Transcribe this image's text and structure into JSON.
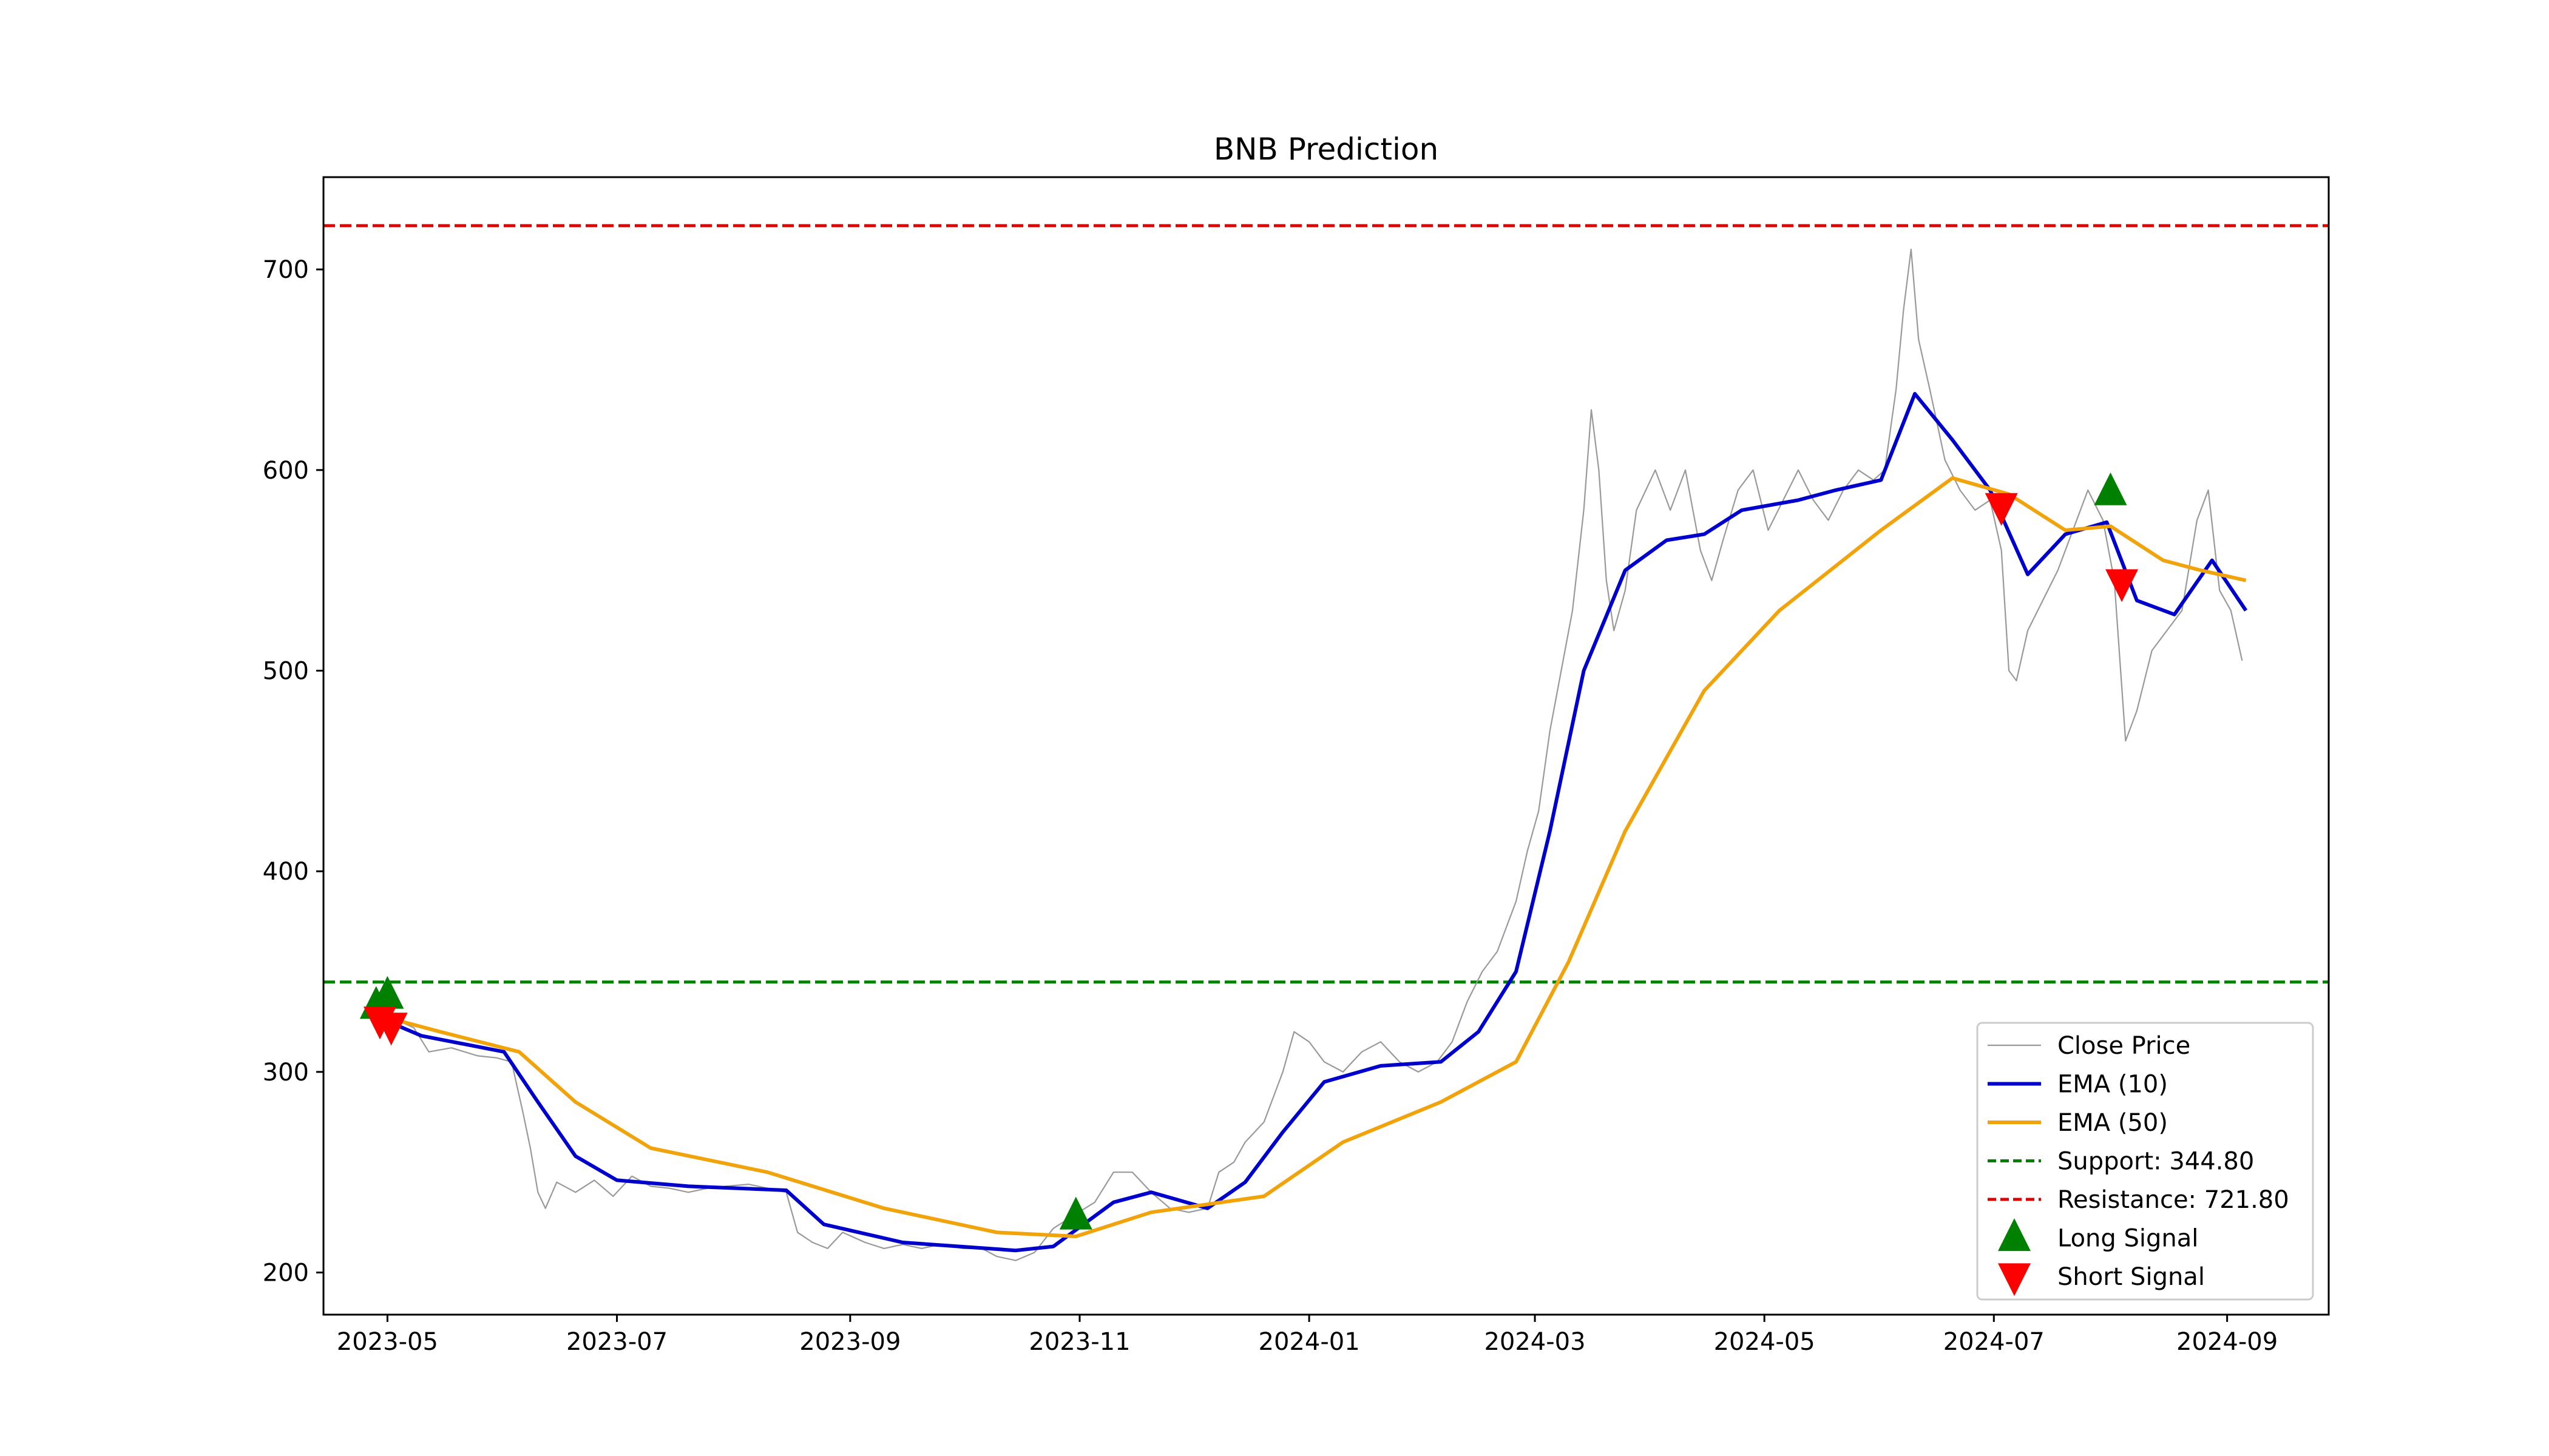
{
  "chart_data": {
    "type": "line",
    "title": "BNB Prediction",
    "xlabel": "",
    "ylabel": "",
    "x_domain": [
      "2023-04-14",
      "2024-09-28"
    ],
    "ylim": [
      179,
      746
    ],
    "x_ticks": [
      "2023-05",
      "2023-07",
      "2023-09",
      "2023-11",
      "2024-01",
      "2024-03",
      "2024-05",
      "2024-07",
      "2024-09"
    ],
    "x_tick_dates": [
      "2023-05-01",
      "2023-07-01",
      "2023-09-01",
      "2023-11-01",
      "2024-01-01",
      "2024-03-01",
      "2024-05-01",
      "2024-07-01",
      "2024-09-01"
    ],
    "y_ticks": [
      200,
      300,
      400,
      500,
      600,
      700
    ],
    "grid": false,
    "legend_position": "lower-right",
    "series": [
      {
        "name": "Close Price",
        "color": "#999999",
        "points": [
          [
            "2023-04-25",
            330
          ],
          [
            "2023-05-01",
            328
          ],
          [
            "2023-05-08",
            322
          ],
          [
            "2023-05-12",
            310
          ],
          [
            "2023-05-18",
            312
          ],
          [
            "2023-05-25",
            308
          ],
          [
            "2023-05-30",
            307
          ],
          [
            "2023-06-03",
            305
          ],
          [
            "2023-06-06",
            280
          ],
          [
            "2023-06-08",
            262
          ],
          [
            "2023-06-10",
            240
          ],
          [
            "2023-06-12",
            232
          ],
          [
            "2023-06-15",
            245
          ],
          [
            "2023-06-20",
            240
          ],
          [
            "2023-06-25",
            246
          ],
          [
            "2023-06-30",
            238
          ],
          [
            "2023-07-05",
            248
          ],
          [
            "2023-07-10",
            243
          ],
          [
            "2023-07-15",
            242
          ],
          [
            "2023-07-20",
            240
          ],
          [
            "2023-07-25",
            242
          ],
          [
            "2023-07-30",
            243
          ],
          [
            "2023-08-05",
            244
          ],
          [
            "2023-08-10",
            242
          ],
          [
            "2023-08-15",
            240
          ],
          [
            "2023-08-18",
            220
          ],
          [
            "2023-08-22",
            215
          ],
          [
            "2023-08-26",
            212
          ],
          [
            "2023-08-30",
            220
          ],
          [
            "2023-09-05",
            215
          ],
          [
            "2023-09-10",
            212
          ],
          [
            "2023-09-15",
            214
          ],
          [
            "2023-09-20",
            212
          ],
          [
            "2023-09-25",
            214
          ],
          [
            "2023-10-01",
            212
          ],
          [
            "2023-10-06",
            212
          ],
          [
            "2023-10-10",
            208
          ],
          [
            "2023-10-15",
            206
          ],
          [
            "2023-10-20",
            210
          ],
          [
            "2023-10-25",
            222
          ],
          [
            "2023-10-30",
            228
          ],
          [
            "2023-11-05",
            235
          ],
          [
            "2023-11-10",
            250
          ],
          [
            "2023-11-15",
            250
          ],
          [
            "2023-11-20",
            240
          ],
          [
            "2023-11-25",
            232
          ],
          [
            "2023-11-30",
            230
          ],
          [
            "2023-12-05",
            232
          ],
          [
            "2023-12-08",
            250
          ],
          [
            "2023-12-12",
            255
          ],
          [
            "2023-12-15",
            265
          ],
          [
            "2023-12-20",
            275
          ],
          [
            "2023-12-25",
            300
          ],
          [
            "2023-12-28",
            320
          ],
          [
            "2024-01-01",
            315
          ],
          [
            "2024-01-05",
            305
          ],
          [
            "2024-01-10",
            300
          ],
          [
            "2024-01-15",
            310
          ],
          [
            "2024-01-20",
            315
          ],
          [
            "2024-01-25",
            305
          ],
          [
            "2024-01-30",
            300
          ],
          [
            "2024-02-04",
            305
          ],
          [
            "2024-02-08",
            315
          ],
          [
            "2024-02-12",
            335
          ],
          [
            "2024-02-16",
            350
          ],
          [
            "2024-02-20",
            360
          ],
          [
            "2024-02-25",
            385
          ],
          [
            "2024-02-28",
            410
          ],
          [
            "2024-03-02",
            430
          ],
          [
            "2024-03-05",
            470
          ],
          [
            "2024-03-08",
            500
          ],
          [
            "2024-03-11",
            530
          ],
          [
            "2024-03-14",
            580
          ],
          [
            "2024-03-16",
            630
          ],
          [
            "2024-03-18",
            600
          ],
          [
            "2024-03-20",
            545
          ],
          [
            "2024-03-22",
            520
          ],
          [
            "2024-03-25",
            540
          ],
          [
            "2024-03-28",
            580
          ],
          [
            "2024-04-02",
            600
          ],
          [
            "2024-04-06",
            580
          ],
          [
            "2024-04-10",
            600
          ],
          [
            "2024-04-14",
            560
          ],
          [
            "2024-04-17",
            545
          ],
          [
            "2024-04-20",
            565
          ],
          [
            "2024-04-24",
            590
          ],
          [
            "2024-04-28",
            600
          ],
          [
            "2024-05-02",
            570
          ],
          [
            "2024-05-06",
            585
          ],
          [
            "2024-05-10",
            600
          ],
          [
            "2024-05-14",
            585
          ],
          [
            "2024-05-18",
            575
          ],
          [
            "2024-05-22",
            590
          ],
          [
            "2024-05-26",
            600
          ],
          [
            "2024-05-30",
            595
          ],
          [
            "2024-06-02",
            600
          ],
          [
            "2024-06-05",
            640
          ],
          [
            "2024-06-07",
            680
          ],
          [
            "2024-06-09",
            710
          ],
          [
            "2024-06-11",
            665
          ],
          [
            "2024-06-14",
            640
          ],
          [
            "2024-06-18",
            605
          ],
          [
            "2024-06-22",
            590
          ],
          [
            "2024-06-26",
            580
          ],
          [
            "2024-06-30",
            585
          ],
          [
            "2024-07-03",
            560
          ],
          [
            "2024-07-05",
            500
          ],
          [
            "2024-07-07",
            495
          ],
          [
            "2024-07-10",
            520
          ],
          [
            "2024-07-14",
            535
          ],
          [
            "2024-07-18",
            550
          ],
          [
            "2024-07-22",
            570
          ],
          [
            "2024-07-26",
            590
          ],
          [
            "2024-07-30",
            575
          ],
          [
            "2024-08-02",
            545
          ],
          [
            "2024-08-05",
            465
          ],
          [
            "2024-08-08",
            480
          ],
          [
            "2024-08-12",
            510
          ],
          [
            "2024-08-16",
            520
          ],
          [
            "2024-08-20",
            530
          ],
          [
            "2024-08-24",
            575
          ],
          [
            "2024-08-27",
            590
          ],
          [
            "2024-08-30",
            540
          ],
          [
            "2024-09-02",
            530
          ],
          [
            "2024-09-05",
            505
          ]
        ]
      },
      {
        "name": "EMA (10)",
        "color": "#0000cc",
        "points": [
          [
            "2023-04-25",
            330
          ],
          [
            "2023-05-10",
            318
          ],
          [
            "2023-06-01",
            310
          ],
          [
            "2023-06-10",
            285
          ],
          [
            "2023-06-20",
            258
          ],
          [
            "2023-07-01",
            246
          ],
          [
            "2023-07-20",
            243
          ],
          [
            "2023-08-15",
            241
          ],
          [
            "2023-08-25",
            224
          ],
          [
            "2023-09-15",
            215
          ],
          [
            "2023-10-15",
            211
          ],
          [
            "2023-10-25",
            213
          ],
          [
            "2023-11-10",
            235
          ],
          [
            "2023-11-20",
            240
          ],
          [
            "2023-12-05",
            232
          ],
          [
            "2023-12-15",
            245
          ],
          [
            "2023-12-25",
            270
          ],
          [
            "2024-01-05",
            295
          ],
          [
            "2024-01-20",
            303
          ],
          [
            "2024-02-05",
            305
          ],
          [
            "2024-02-15",
            320
          ],
          [
            "2024-02-25",
            350
          ],
          [
            "2024-03-05",
            420
          ],
          [
            "2024-03-14",
            500
          ],
          [
            "2024-03-25",
            550
          ],
          [
            "2024-04-05",
            565
          ],
          [
            "2024-04-15",
            568
          ],
          [
            "2024-04-25",
            580
          ],
          [
            "2024-05-10",
            585
          ],
          [
            "2024-05-20",
            590
          ],
          [
            "2024-06-01",
            595
          ],
          [
            "2024-06-10",
            638
          ],
          [
            "2024-06-20",
            615
          ],
          [
            "2024-06-30",
            590
          ],
          [
            "2024-07-10",
            548
          ],
          [
            "2024-07-20",
            568
          ],
          [
            "2024-07-31",
            574
          ],
          [
            "2024-08-08",
            535
          ],
          [
            "2024-08-18",
            528
          ],
          [
            "2024-08-28",
            555
          ],
          [
            "2024-09-06",
            530
          ]
        ]
      },
      {
        "name": "EMA (50)",
        "color": "#f0a30a",
        "points": [
          [
            "2023-04-25",
            330
          ],
          [
            "2023-05-15",
            320
          ],
          [
            "2023-06-05",
            310
          ],
          [
            "2023-06-20",
            285
          ],
          [
            "2023-07-10",
            262
          ],
          [
            "2023-08-10",
            250
          ],
          [
            "2023-09-10",
            232
          ],
          [
            "2023-10-10",
            220
          ],
          [
            "2023-10-31",
            218
          ],
          [
            "2023-11-20",
            230
          ],
          [
            "2023-12-20",
            238
          ],
          [
            "2024-01-10",
            265
          ],
          [
            "2024-02-05",
            285
          ],
          [
            "2024-02-25",
            305
          ],
          [
            "2024-03-10",
            355
          ],
          [
            "2024-03-25",
            420
          ],
          [
            "2024-04-15",
            490
          ],
          [
            "2024-05-05",
            530
          ],
          [
            "2024-06-01",
            570
          ],
          [
            "2024-06-20",
            596
          ],
          [
            "2024-07-05",
            588
          ],
          [
            "2024-07-20",
            570
          ],
          [
            "2024-08-01",
            572
          ],
          [
            "2024-08-15",
            555
          ],
          [
            "2024-08-25",
            550
          ],
          [
            "2024-09-06",
            545
          ]
        ]
      }
    ],
    "support": {
      "label": "Support: 344.80",
      "value": 344.8,
      "color": "#008000"
    },
    "resistance": {
      "label": "Resistance: 721.80",
      "value": 721.8,
      "color": "#dd0000"
    },
    "long_signals": {
      "name": "Long Signal",
      "color": "#008000",
      "points": [
        [
          "2023-04-28",
          333
        ],
        [
          "2023-05-01",
          338
        ],
        [
          "2023-10-31",
          228
        ],
        [
          "2024-08-01",
          589
        ]
      ]
    },
    "short_signals": {
      "name": "Short Signal",
      "color": "#ff0000",
      "points": [
        [
          "2023-04-29",
          326
        ],
        [
          "2023-05-02",
          323
        ],
        [
          "2024-07-03",
          582
        ],
        [
          "2024-08-04",
          544
        ]
      ]
    }
  }
}
